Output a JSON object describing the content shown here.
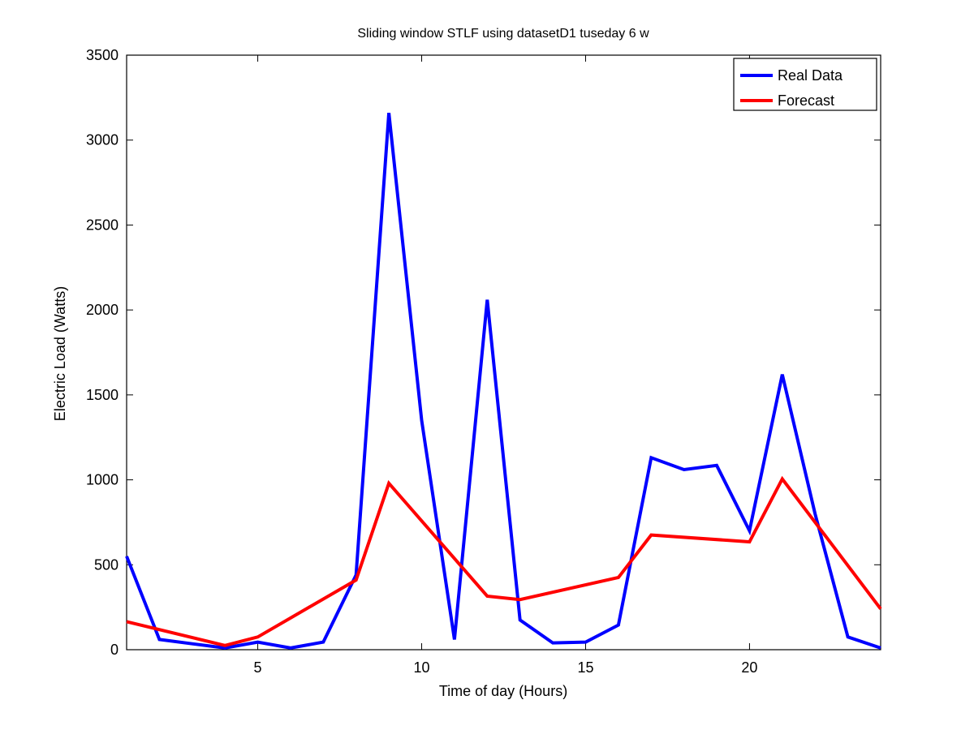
{
  "chart_data": {
    "type": "line",
    "title": "Sliding window STLF using datasetD1 tuseday 6 w",
    "xlabel": "Time of day (Hours)",
    "ylabel": "Electric Load (Watts)",
    "xlim": [
      1,
      24
    ],
    "ylim": [
      0,
      3500
    ],
    "xticks": [
      5,
      10,
      15,
      20
    ],
    "yticks": [
      0,
      500,
      1000,
      1500,
      2000,
      2500,
      3000,
      3500
    ],
    "grid": false,
    "legend_position": "top-right",
    "series": [
      {
        "name": "Real Data",
        "color": "#0000ff",
        "x": [
          1,
          2,
          3,
          4,
          5,
          6,
          7,
          8,
          9,
          10,
          11,
          12,
          13,
          14,
          15,
          16,
          17,
          18,
          19,
          20,
          21,
          22,
          23,
          24
        ],
        "values": [
          550,
          60,
          35,
          10,
          45,
          10,
          45,
          440,
          3160,
          1350,
          60,
          2060,
          175,
          40,
          45,
          145,
          1130,
          1060,
          1085,
          700,
          1620,
          800,
          75,
          10
        ]
      },
      {
        "name": "Forecast",
        "color": "#ff0000",
        "x": [
          1,
          4,
          5,
          8,
          9,
          12,
          13,
          16,
          17,
          20,
          21,
          24
        ],
        "values": [
          165,
          25,
          75,
          410,
          980,
          315,
          295,
          425,
          675,
          635,
          1005,
          240
        ]
      }
    ]
  }
}
